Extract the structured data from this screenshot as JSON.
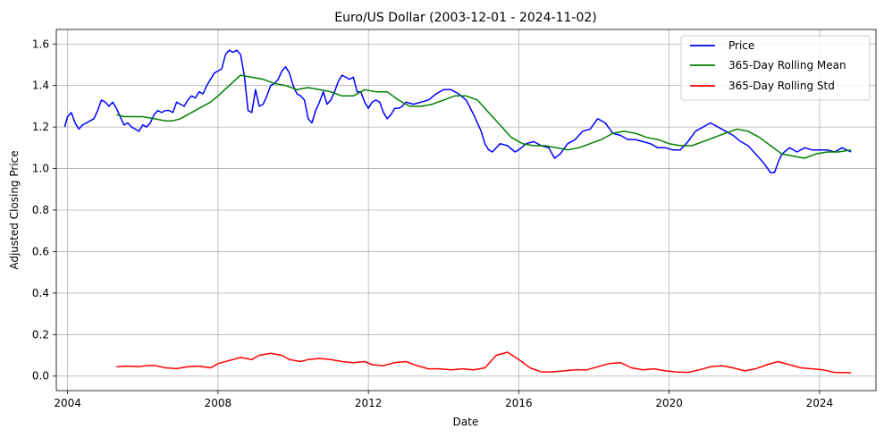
{
  "chart_data": {
    "type": "line",
    "title": "Euro/US Dollar (2003-12-01 - 2024-11-02)",
    "xlabel": "Date",
    "ylabel": "Adjusted Closing Price",
    "xlim": [
      2003.7,
      2025.5
    ],
    "ylim": [
      -0.07,
      1.67
    ],
    "xticks": [
      2004,
      2008,
      2012,
      2016,
      2020,
      2024
    ],
    "yticks": [
      0.0,
      0.2,
      0.4,
      0.6,
      0.8,
      1.0,
      1.2,
      1.4,
      1.6
    ],
    "ytick_labels": [
      "0.0",
      "0.2",
      "0.4",
      "0.6",
      "0.8",
      "1.0",
      "1.2",
      "1.4",
      "1.6"
    ],
    "grid": true,
    "legend_position": "top-right",
    "series": [
      {
        "name": "Price",
        "color": "#0000ff",
        "x": [
          2003.92,
          2004.0,
          2004.1,
          2004.2,
          2004.3,
          2004.4,
          2004.5,
          2004.6,
          2004.7,
          2004.8,
          2004.9,
          2005.0,
          2005.1,
          2005.2,
          2005.3,
          2005.4,
          2005.5,
          2005.6,
          2005.7,
          2005.8,
          2005.9,
          2006.0,
          2006.1,
          2006.2,
          2006.3,
          2006.4,
          2006.5,
          2006.6,
          2006.7,
          2006.8,
          2006.9,
          2007.0,
          2007.1,
          2007.2,
          2007.3,
          2007.4,
          2007.5,
          2007.6,
          2007.7,
          2007.8,
          2007.9,
          2008.0,
          2008.1,
          2008.2,
          2008.3,
          2008.4,
          2008.5,
          2008.6,
          2008.7,
          2008.8,
          2008.9,
          2009.0,
          2009.1,
          2009.2,
          2009.3,
          2009.4,
          2009.5,
          2009.6,
          2009.7,
          2009.8,
          2009.9,
          2010.0,
          2010.1,
          2010.2,
          2010.3,
          2010.4,
          2010.5,
          2010.6,
          2010.7,
          2010.8,
          2010.9,
          2011.0,
          2011.1,
          2011.2,
          2011.3,
          2011.4,
          2011.5,
          2011.6,
          2011.7,
          2011.8,
          2011.9,
          2012.0,
          2012.1,
          2012.2,
          2012.3,
          2012.4,
          2012.5,
          2012.6,
          2012.7,
          2012.8,
          2012.9,
          2013.0,
          2013.2,
          2013.4,
          2013.6,
          2013.8,
          2014.0,
          2014.2,
          2014.4,
          2014.6,
          2014.8,
          2015.0,
          2015.1,
          2015.2,
          2015.3,
          2015.5,
          2015.7,
          2015.9,
          2016.0,
          2016.2,
          2016.4,
          2016.6,
          2016.8,
          2016.95,
          2017.1,
          2017.3,
          2017.5,
          2017.7,
          2017.9,
          2018.1,
          2018.3,
          2018.5,
          2018.7,
          2018.9,
          2019.1,
          2019.3,
          2019.5,
          2019.7,
          2019.9,
          2020.1,
          2020.3,
          2020.5,
          2020.7,
          2020.9,
          2021.1,
          2021.3,
          2021.5,
          2021.7,
          2021.9,
          2022.1,
          2022.3,
          2022.5,
          2022.7,
          2022.8,
          2022.9,
          2023.0,
          2023.2,
          2023.4,
          2023.6,
          2023.8,
          2024.0,
          2024.2,
          2024.4,
          2024.6,
          2024.84
        ],
        "values": [
          1.2,
          1.25,
          1.27,
          1.22,
          1.19,
          1.21,
          1.22,
          1.23,
          1.24,
          1.28,
          1.33,
          1.32,
          1.3,
          1.32,
          1.29,
          1.25,
          1.21,
          1.22,
          1.2,
          1.19,
          1.18,
          1.21,
          1.2,
          1.22,
          1.26,
          1.28,
          1.27,
          1.28,
          1.28,
          1.27,
          1.32,
          1.31,
          1.3,
          1.33,
          1.35,
          1.34,
          1.37,
          1.36,
          1.4,
          1.43,
          1.46,
          1.47,
          1.48,
          1.55,
          1.57,
          1.56,
          1.57,
          1.55,
          1.45,
          1.28,
          1.27,
          1.38,
          1.3,
          1.31,
          1.35,
          1.4,
          1.41,
          1.43,
          1.47,
          1.49,
          1.46,
          1.4,
          1.36,
          1.35,
          1.33,
          1.24,
          1.22,
          1.28,
          1.32,
          1.37,
          1.31,
          1.33,
          1.37,
          1.42,
          1.45,
          1.44,
          1.43,
          1.44,
          1.37,
          1.37,
          1.32,
          1.29,
          1.32,
          1.33,
          1.32,
          1.27,
          1.24,
          1.26,
          1.29,
          1.29,
          1.3,
          1.32,
          1.31,
          1.32,
          1.33,
          1.36,
          1.38,
          1.38,
          1.36,
          1.33,
          1.26,
          1.18,
          1.12,
          1.09,
          1.08,
          1.12,
          1.11,
          1.08,
          1.09,
          1.12,
          1.13,
          1.11,
          1.1,
          1.05,
          1.07,
          1.12,
          1.14,
          1.18,
          1.19,
          1.24,
          1.22,
          1.17,
          1.16,
          1.14,
          1.14,
          1.13,
          1.12,
          1.1,
          1.1,
          1.09,
          1.09,
          1.13,
          1.18,
          1.2,
          1.22,
          1.2,
          1.18,
          1.16,
          1.13,
          1.11,
          1.07,
          1.03,
          0.98,
          0.98,
          1.03,
          1.07,
          1.1,
          1.08,
          1.1,
          1.09,
          1.09,
          1.09,
          1.08,
          1.1,
          1.08
        ]
      },
      {
        "name": "365-Day Rolling Mean",
        "color": "#008000",
        "x": [
          2005.3,
          2005.5,
          2005.8,
          2006.0,
          2006.3,
          2006.6,
          2006.8,
          2007.0,
          2007.2,
          2007.5,
          2007.8,
          2008.0,
          2008.3,
          2008.6,
          2008.9,
          2009.2,
          2009.5,
          2009.8,
          2010.1,
          2010.4,
          2010.7,
          2011.0,
          2011.3,
          2011.6,
          2011.9,
          2012.2,
          2012.5,
          2012.8,
          2013.1,
          2013.4,
          2013.7,
          2014.0,
          2014.3,
          2014.6,
          2014.9,
          2015.2,
          2015.5,
          2015.8,
          2016.1,
          2016.4,
          2016.7,
          2017.0,
          2017.3,
          2017.6,
          2017.9,
          2018.2,
          2018.5,
          2018.8,
          2019.1,
          2019.4,
          2019.7,
          2020.0,
          2020.3,
          2020.6,
          2020.9,
          2021.2,
          2021.5,
          2021.8,
          2022.1,
          2022.4,
          2022.7,
          2023.0,
          2023.3,
          2023.6,
          2023.9,
          2024.2,
          2024.5,
          2024.84
        ],
        "values": [
          1.26,
          1.25,
          1.25,
          1.25,
          1.24,
          1.23,
          1.23,
          1.24,
          1.26,
          1.29,
          1.32,
          1.35,
          1.4,
          1.45,
          1.44,
          1.43,
          1.41,
          1.4,
          1.38,
          1.39,
          1.38,
          1.37,
          1.35,
          1.35,
          1.38,
          1.37,
          1.37,
          1.33,
          1.3,
          1.3,
          1.31,
          1.33,
          1.35,
          1.35,
          1.33,
          1.27,
          1.21,
          1.15,
          1.12,
          1.11,
          1.11,
          1.1,
          1.09,
          1.1,
          1.12,
          1.14,
          1.17,
          1.18,
          1.17,
          1.15,
          1.14,
          1.12,
          1.11,
          1.11,
          1.13,
          1.15,
          1.17,
          1.19,
          1.18,
          1.15,
          1.11,
          1.07,
          1.06,
          1.05,
          1.07,
          1.08,
          1.08,
          1.09
        ]
      },
      {
        "name": "365-Day Rolling Std",
        "color": "#ff0000",
        "x": [
          2005.3,
          2005.6,
          2005.9,
          2006.1,
          2006.3,
          2006.6,
          2006.9,
          2007.2,
          2007.5,
          2007.8,
          2008.0,
          2008.3,
          2008.6,
          2008.9,
          2009.1,
          2009.4,
          2009.7,
          2009.9,
          2010.2,
          2010.4,
          2010.7,
          2011.0,
          2011.3,
          2011.6,
          2011.9,
          2012.1,
          2012.4,
          2012.7,
          2013.0,
          2013.3,
          2013.6,
          2013.9,
          2014.2,
          2014.5,
          2014.8,
          2015.1,
          2015.4,
          2015.7,
          2016.0,
          2016.3,
          2016.6,
          2016.9,
          2017.2,
          2017.5,
          2017.8,
          2018.1,
          2018.4,
          2018.7,
          2019.0,
          2019.3,
          2019.6,
          2019.9,
          2020.2,
          2020.5,
          2020.8,
          2021.1,
          2021.4,
          2021.7,
          2022.0,
          2022.3,
          2022.6,
          2022.9,
          2023.2,
          2023.5,
          2023.8,
          2024.1,
          2024.4,
          2024.84
        ],
        "values": [
          0.045,
          0.048,
          0.046,
          0.05,
          0.052,
          0.04,
          0.036,
          0.045,
          0.048,
          0.04,
          0.06,
          0.075,
          0.09,
          0.08,
          0.1,
          0.11,
          0.1,
          0.08,
          0.07,
          0.08,
          0.085,
          0.08,
          0.07,
          0.065,
          0.07,
          0.055,
          0.05,
          0.065,
          0.07,
          0.05,
          0.035,
          0.035,
          0.03,
          0.035,
          0.03,
          0.04,
          0.1,
          0.115,
          0.08,
          0.04,
          0.02,
          0.02,
          0.025,
          0.03,
          0.03,
          0.045,
          0.06,
          0.065,
          0.04,
          0.03,
          0.035,
          0.025,
          0.02,
          0.018,
          0.03,
          0.045,
          0.05,
          0.04,
          0.025,
          0.035,
          0.055,
          0.07,
          0.055,
          0.04,
          0.035,
          0.03,
          0.018,
          0.016
        ]
      }
    ]
  }
}
